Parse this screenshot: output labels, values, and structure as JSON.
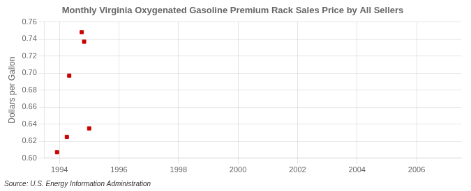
{
  "chart_data": {
    "type": "scatter",
    "title": "Monthly Virginia Oxygenated Gasoline Premium Rack Sales Price by All Sellers",
    "ylabel": "Dollars per Gallon",
    "annotations": [
      "Source: U.S. Energy Information Administration"
    ],
    "x": [
      1993.92,
      1994.25,
      1994.33,
      1994.75,
      1994.83,
      1995.0
    ],
    "values": [
      0.607,
      0.625,
      0.697,
      0.748,
      0.737,
      0.635
    ],
    "color": "#cc0000",
    "marker": "square",
    "xlim": [
      1993.5,
      2007.5
    ],
    "ylim": [
      0.6,
      0.76
    ],
    "xticks": [
      1994,
      1996,
      1998,
      2000,
      2002,
      2004,
      2006
    ],
    "yticks": [
      {
        "value": 0.6,
        "label": "0.60"
      },
      0.62,
      0.64,
      0.66,
      0.68,
      {
        "value": 0.7,
        "label": "0.70"
      },
      0.72,
      0.74,
      0.76
    ],
    "grid": true
  }
}
